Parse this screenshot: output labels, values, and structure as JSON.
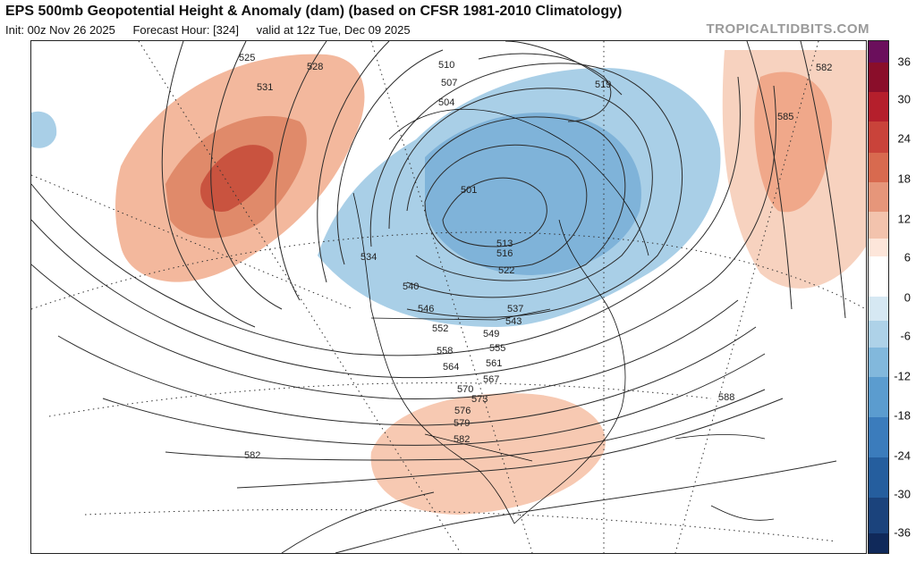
{
  "header": {
    "title": "EPS 500mb Geopotential Height & Anomaly (dam) (based on CFSR 1981-2010 Climatology)",
    "init": "Init: 00z Nov 26 2025",
    "forecast_hour": "Forecast Hour: [324]",
    "valid": "valid at 12z Tue, Dec 09 2025",
    "site": "TROPICALTIDBITS.COM"
  },
  "colorbar": {
    "ticks": [
      "36",
      "30",
      "24",
      "18",
      "12",
      "6",
      "0",
      "-6",
      "-12",
      "-18",
      "-24",
      "-30",
      "-36"
    ],
    "colors": [
      "#6b0f5c",
      "#8a0e2a",
      "#b51f2c",
      "#c9433a",
      "#d86a4f",
      "#e6967a",
      "#f3c3ad",
      "#fde6da",
      "#ffffff",
      "#d6e8f3",
      "#aed2e8",
      "#82b8dc",
      "#5b9ccf",
      "#3b7cbc",
      "#255e9e",
      "#1b437c",
      "#10295a"
    ]
  },
  "contours": [
    "501",
    "504",
    "507",
    "510",
    "513",
    "516",
    "519",
    "522",
    "525",
    "528",
    "531",
    "534",
    "537",
    "540",
    "543",
    "546",
    "549",
    "552",
    "555",
    "558",
    "561",
    "564",
    "567",
    "570",
    "573",
    "576",
    "579",
    "582",
    "585",
    "588"
  ],
  "anomalies": {
    "positive_color": "#e08a6a",
    "strong_positive_color": "#c7533f",
    "light_positive_color": "#f6cdb8",
    "negative_color": "#9ec7e2",
    "strong_negative_color": "#5d9bcb"
  }
}
